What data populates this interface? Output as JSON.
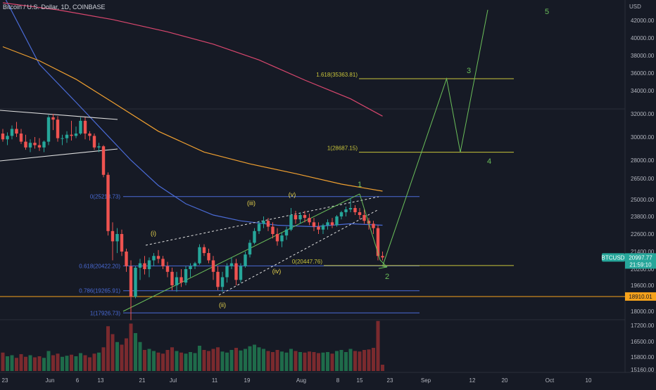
{
  "header": {
    "symbol_title": "Bitcoin / U.S. Dollar, 1D, COINBASE"
  },
  "price_axis": {
    "currency": "USD",
    "ticks": [
      "42000.00",
      "40000.00",
      "38000.00",
      "36000.00",
      "34000.00",
      "32000.00",
      "30000.00",
      "28000.00",
      "26500.00",
      "25000.00",
      "23800.00",
      "22600.00",
      "21400.00",
      "20200.00",
      "19600.00",
      "18000.00"
    ],
    "ticks_pos": [
      42000,
      40000,
      38000,
      36000,
      34000,
      32000,
      30000,
      28000,
      26500,
      25000,
      23800,
      22600,
      21400,
      20200,
      19600,
      18000
    ],
    "volume_ticks": [
      "17200.00",
      "16500.00",
      "15800.00",
      "15160.00"
    ],
    "last_price_label": "BTCUSD",
    "last_price": "20997.77",
    "countdown": "21:59:10",
    "level_label": "18910.01",
    "colors": {
      "last_price_bg": "#26a69a",
      "level_bg": "#f7a21b"
    }
  },
  "time_axis": {
    "labels": [
      "23",
      "Jun",
      "6",
      "13",
      "21",
      "Jul",
      "11",
      "19",
      "Aug",
      "8",
      "15",
      "23",
      "Sep",
      "12",
      "20",
      "Oct",
      "10"
    ]
  },
  "chart_data": {
    "type": "candlestick",
    "title": "Bitcoin / U.S. Dollar, 1D, COINBASE",
    "y_axis": {
      "unit": "USD",
      "range": [
        17200,
        43000
      ]
    },
    "candles": [
      {
        "o": 30300,
        "h": 30700,
        "l": 29600,
        "c": 29800
      },
      {
        "o": 29800,
        "h": 30400,
        "l": 29300,
        "c": 30100
      },
      {
        "o": 30100,
        "h": 31000,
        "l": 29800,
        "c": 30700
      },
      {
        "o": 30700,
        "h": 31300,
        "l": 30000,
        "c": 30300
      },
      {
        "o": 30300,
        "h": 30700,
        "l": 29400,
        "c": 29600
      },
      {
        "o": 29600,
        "h": 30200,
        "l": 28900,
        "c": 29100
      },
      {
        "o": 29100,
        "h": 29800,
        "l": 28700,
        "c": 29500
      },
      {
        "o": 29500,
        "h": 30000,
        "l": 29000,
        "c": 29300
      },
      {
        "o": 29300,
        "h": 29900,
        "l": 28800,
        "c": 29100
      },
      {
        "o": 29100,
        "h": 29700,
        "l": 28700,
        "c": 29600
      },
      {
        "o": 29600,
        "h": 31900,
        "l": 29300,
        "c": 31700
      },
      {
        "o": 31700,
        "h": 32000,
        "l": 30600,
        "c": 31500
      },
      {
        "o": 31500,
        "h": 31800,
        "l": 29600,
        "c": 29900
      },
      {
        "o": 29900,
        "h": 30200,
        "l": 29300,
        "c": 29900
      },
      {
        "o": 29900,
        "h": 30500,
        "l": 29500,
        "c": 30200
      },
      {
        "o": 30200,
        "h": 31400,
        "l": 29700,
        "c": 30100
      },
      {
        "o": 30100,
        "h": 30900,
        "l": 29900,
        "c": 30300
      },
      {
        "o": 30300,
        "h": 31700,
        "l": 30200,
        "c": 31400
      },
      {
        "o": 31400,
        "h": 31700,
        "l": 29800,
        "c": 30300
      },
      {
        "o": 30300,
        "h": 30500,
        "l": 29700,
        "c": 30100
      },
      {
        "o": 30100,
        "h": 30300,
        "l": 28900,
        "c": 29100
      },
      {
        "o": 29100,
        "h": 29500,
        "l": 28700,
        "c": 29200
      },
      {
        "o": 29200,
        "h": 29300,
        "l": 26600,
        "c": 26800
      },
      {
        "o": 26800,
        "h": 27000,
        "l": 22500,
        "c": 22800
      },
      {
        "o": 22800,
        "h": 23400,
        "l": 20800,
        "c": 22100
      },
      {
        "o": 22100,
        "h": 23000,
        "l": 21300,
        "c": 22600
      },
      {
        "o": 22600,
        "h": 22900,
        "l": 21100,
        "c": 21400
      },
      {
        "o": 21400,
        "h": 21600,
        "l": 20100,
        "c": 20400
      },
      {
        "o": 20400,
        "h": 20800,
        "l": 17600,
        "c": 18900
      },
      {
        "o": 18900,
        "h": 20400,
        "l": 18800,
        "c": 20300
      },
      {
        "o": 20300,
        "h": 20900,
        "l": 19800,
        "c": 20600
      },
      {
        "o": 20600,
        "h": 21100,
        "l": 20000,
        "c": 20200
      },
      {
        "o": 20200,
        "h": 21000,
        "l": 19900,
        "c": 20800
      },
      {
        "o": 20800,
        "h": 21300,
        "l": 20400,
        "c": 21100
      },
      {
        "o": 21100,
        "h": 21500,
        "l": 20600,
        "c": 20900
      },
      {
        "o": 20900,
        "h": 21100,
        "l": 20200,
        "c": 20400
      },
      {
        "o": 20400,
        "h": 20700,
        "l": 19900,
        "c": 20100
      },
      {
        "o": 20100,
        "h": 20300,
        "l": 19300,
        "c": 19600
      },
      {
        "o": 19600,
        "h": 20100,
        "l": 19200,
        "c": 19900
      },
      {
        "o": 19900,
        "h": 20200,
        "l": 19500,
        "c": 19700
      },
      {
        "o": 19700,
        "h": 20400,
        "l": 19600,
        "c": 20200
      },
      {
        "o": 20200,
        "h": 20600,
        "l": 19900,
        "c": 20400
      },
      {
        "o": 20400,
        "h": 20700,
        "l": 20200,
        "c": 20600
      },
      {
        "o": 20600,
        "h": 21900,
        "l": 20500,
        "c": 21700
      },
      {
        "o": 21700,
        "h": 21900,
        "l": 21100,
        "c": 21300
      },
      {
        "o": 21300,
        "h": 21600,
        "l": 20600,
        "c": 20800
      },
      {
        "o": 20800,
        "h": 21100,
        "l": 19800,
        "c": 20100
      },
      {
        "o": 20100,
        "h": 20400,
        "l": 19300,
        "c": 19500
      },
      {
        "o": 19500,
        "h": 20100,
        "l": 19200,
        "c": 19900
      },
      {
        "o": 19900,
        "h": 20600,
        "l": 19700,
        "c": 20400
      },
      {
        "o": 20400,
        "h": 21000,
        "l": 20200,
        "c": 20600
      },
      {
        "o": 20600,
        "h": 20900,
        "l": 19600,
        "c": 19800
      },
      {
        "o": 19800,
        "h": 20600,
        "l": 19700,
        "c": 20400
      },
      {
        "o": 20400,
        "h": 21400,
        "l": 20300,
        "c": 21200
      },
      {
        "o": 21200,
        "h": 22200,
        "l": 21000,
        "c": 22000
      },
      {
        "o": 22000,
        "h": 23000,
        "l": 21900,
        "c": 22800
      },
      {
        "o": 22800,
        "h": 23500,
        "l": 22600,
        "c": 23300
      },
      {
        "o": 23300,
        "h": 23800,
        "l": 23000,
        "c": 23500
      },
      {
        "o": 23500,
        "h": 23700,
        "l": 22800,
        "c": 23100
      },
      {
        "o": 23100,
        "h": 23400,
        "l": 22300,
        "c": 22600
      },
      {
        "o": 22600,
        "h": 23000,
        "l": 21800,
        "c": 22100
      },
      {
        "o": 22100,
        "h": 22700,
        "l": 21700,
        "c": 22500
      },
      {
        "o": 22500,
        "h": 23100,
        "l": 22200,
        "c": 22900
      },
      {
        "o": 22900,
        "h": 24400,
        "l": 22800,
        "c": 23900
      },
      {
        "o": 23900,
        "h": 24200,
        "l": 23300,
        "c": 23600
      },
      {
        "o": 23600,
        "h": 24100,
        "l": 23300,
        "c": 23900
      },
      {
        "o": 23900,
        "h": 24200,
        "l": 23400,
        "c": 23700
      },
      {
        "o": 23700,
        "h": 24000,
        "l": 23200,
        "c": 23400
      },
      {
        "o": 23400,
        "h": 23700,
        "l": 22800,
        "c": 23100
      },
      {
        "o": 23100,
        "h": 23400,
        "l": 22600,
        "c": 22900
      },
      {
        "o": 22900,
        "h": 23300,
        "l": 22600,
        "c": 23200
      },
      {
        "o": 23200,
        "h": 23600,
        "l": 22900,
        "c": 23400
      },
      {
        "o": 23400,
        "h": 23700,
        "l": 23000,
        "c": 23200
      },
      {
        "o": 23200,
        "h": 23900,
        "l": 23100,
        "c": 23800
      },
      {
        "o": 23800,
        "h": 24200,
        "l": 23600,
        "c": 24100
      },
      {
        "o": 24100,
        "h": 24500,
        "l": 23800,
        "c": 24300
      },
      {
        "o": 24300,
        "h": 25100,
        "l": 24100,
        "c": 24400
      },
      {
        "o": 24400,
        "h": 24600,
        "l": 23900,
        "c": 24100
      },
      {
        "o": 24100,
        "h": 24400,
        "l": 23600,
        "c": 23900
      },
      {
        "o": 23900,
        "h": 24300,
        "l": 23300,
        "c": 23500
      },
      {
        "o": 23500,
        "h": 23700,
        "l": 22900,
        "c": 23300
      },
      {
        "o": 23300,
        "h": 23500,
        "l": 22600,
        "c": 23000
      },
      {
        "o": 23000,
        "h": 23200,
        "l": 20800,
        "c": 21100
      },
      {
        "o": 21100,
        "h": 21400,
        "l": 20800,
        "c": 20997.77
      }
    ],
    "volume": [
      0.35,
      0.28,
      0.3,
      0.25,
      0.32,
      0.27,
      0.3,
      0.26,
      0.28,
      0.25,
      0.38,
      0.3,
      0.33,
      0.27,
      0.29,
      0.31,
      0.28,
      0.34,
      0.3,
      0.26,
      0.33,
      0.35,
      0.45,
      0.85,
      0.7,
      0.55,
      0.5,
      0.62,
      0.9,
      0.72,
      0.55,
      0.4,
      0.42,
      0.38,
      0.35,
      0.33,
      0.4,
      0.45,
      0.38,
      0.35,
      0.33,
      0.36,
      0.34,
      0.48,
      0.4,
      0.38,
      0.42,
      0.45,
      0.37,
      0.35,
      0.4,
      0.44,
      0.39,
      0.42,
      0.47,
      0.5,
      0.45,
      0.42,
      0.38,
      0.36,
      0.4,
      0.37,
      0.35,
      0.42,
      0.38,
      0.36,
      0.35,
      0.37,
      0.36,
      0.34,
      0.35,
      0.36,
      0.33,
      0.38,
      0.4,
      0.36,
      0.42,
      0.38,
      0.37,
      0.4,
      0.41,
      0.44,
      0.95,
      0.12
    ],
    "moving_averages": [
      {
        "color": "#4a6bd6",
        "points": [
          [
            0,
            45000
          ],
          [
            8,
            37000
          ],
          [
            16,
            33000
          ],
          [
            22,
            30500
          ],
          [
            28,
            28000
          ],
          [
            34,
            26000
          ],
          [
            40,
            24700
          ],
          [
            46,
            23900
          ],
          [
            52,
            23500
          ],
          [
            60,
            23200
          ],
          [
            68,
            23100
          ],
          [
            76,
            23300
          ],
          [
            83,
            23200
          ]
        ]
      },
      {
        "color": "#f0a030",
        "points": [
          [
            0,
            39000
          ],
          [
            8,
            37400
          ],
          [
            16,
            35300
          ],
          [
            24,
            33000
          ],
          [
            34,
            30500
          ],
          [
            44,
            28700
          ],
          [
            54,
            27700
          ],
          [
            64,
            26900
          ],
          [
            74,
            26100
          ],
          [
            83,
            25600
          ]
        ]
      },
      {
        "color": "#d9476e",
        "points": [
          [
            0,
            44000
          ],
          [
            12,
            43200
          ],
          [
            24,
            42100
          ],
          [
            36,
            40700
          ],
          [
            46,
            39300
          ],
          [
            56,
            37500
          ],
          [
            66,
            35200
          ],
          [
            76,
            33300
          ],
          [
            83,
            31800
          ]
        ]
      }
    ],
    "fib_retracement": {
      "color": "#4a6bd6",
      "levels": [
        {
          "label": "0(25213.73)",
          "value": 25213.73
        },
        {
          "label": "0.618(20422.20)",
          "value": 20422.2
        },
        {
          "label": "0.786(19265.91)",
          "value": 19265.91
        },
        {
          "label": "1(17926.73)",
          "value": 17926.73
        }
      ]
    },
    "fib_extension": {
      "color": "#c8c43a",
      "levels": [
        {
          "label": "1.618(35363.81)",
          "value": 35363.81
        },
        {
          "label": "1(28687.15)",
          "value": 28687.15
        },
        {
          "label": "0(20447.76)",
          "value": 20447.76
        }
      ]
    },
    "horizontal_level": {
      "value": 18910.01,
      "color": "#f7a21b"
    },
    "wave_labels_yellow": [
      "(i)",
      "(ii)",
      "(iii)",
      "(iv)",
      "(v)"
    ],
    "wave_labels_green": [
      "1",
      "2",
      "3",
      "4",
      "5"
    ],
    "projection_path": [
      [
        83,
        20400
      ],
      [
        97,
        35363.81
      ],
      [
        100,
        28687.15
      ],
      [
        106,
        43200
      ]
    ]
  }
}
